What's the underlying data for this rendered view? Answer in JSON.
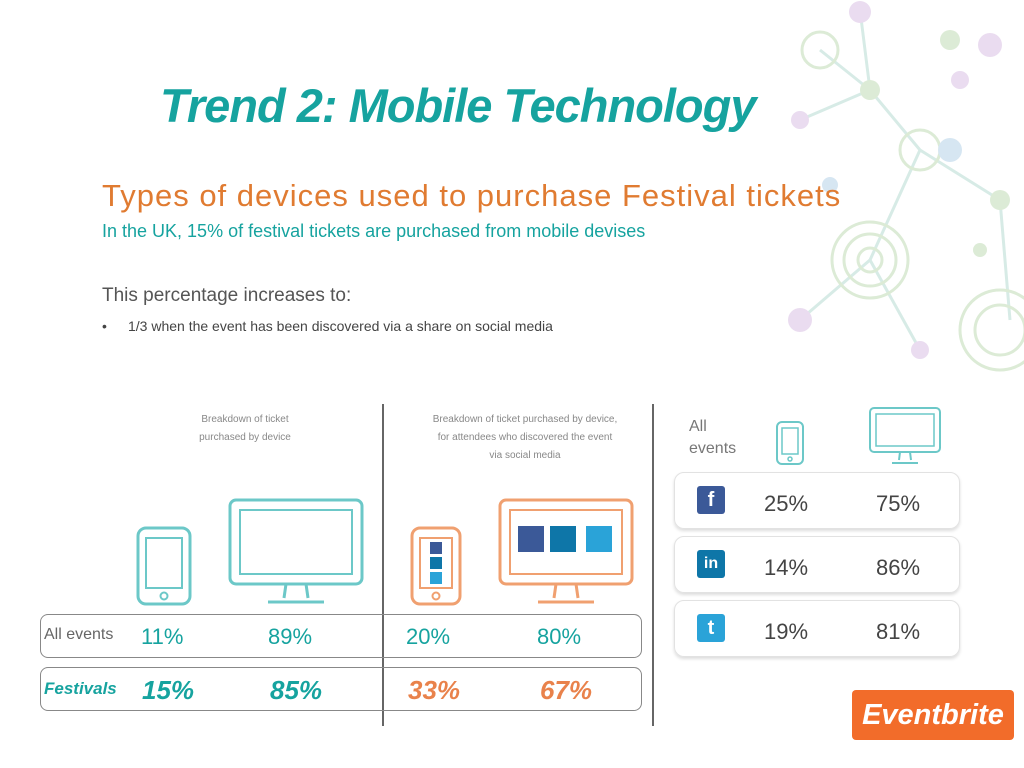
{
  "slide": {
    "title": "Trend 2: Mobile Technology",
    "subtitle": "Types of devices used to purchase Festival tickets",
    "subline": "In the UK, 15% of festival tickets are purchased from mobile devises",
    "increase_text": "This percentage increases to:",
    "bullet_mark": "•",
    "bullet_text": "1/3 when the event has been discovered via a share on social media"
  },
  "panel_left": {
    "caption_line1": "Breakdown of ticket",
    "caption_line2": "purchased by device"
  },
  "panel_mid": {
    "caption_line1": "Breakdown of ticket purchased by device,",
    "caption_line2": "for attendees who discovered  the event",
    "caption_line3": "via social media"
  },
  "rows": {
    "all_events": {
      "label": "All events",
      "mobile": "11%",
      "desktop": "89%",
      "social_mobile": "20%",
      "social_desktop": "80%"
    },
    "festivals": {
      "label": "Festivals",
      "mobile": "15%",
      "desktop": "85%",
      "social_mobile": "33%",
      "social_desktop": "67%"
    }
  },
  "social": {
    "header_line1": "All",
    "header_line2": "events",
    "rows": [
      {
        "network": "facebook",
        "glyph": "f",
        "mobile": "25%",
        "desktop": "75%"
      },
      {
        "network": "linkedin",
        "glyph": "in",
        "mobile": "14%",
        "desktop": "86%"
      },
      {
        "network": "twitter",
        "glyph": "t",
        "mobile": "19%",
        "desktop": "81%"
      }
    ]
  },
  "brand": {
    "logo": "Eventbrite",
    "teal": "#16a39f",
    "orange": "#e07b31",
    "facebook_blue": "#3b5998",
    "linkedin_blue": "#0e76a8",
    "twitter_blue": "#2aa3d8"
  },
  "icons": [
    "phone-icon",
    "monitor-icon",
    "facebook-icon",
    "linkedin-icon",
    "twitter-icon",
    "network-graphic"
  ]
}
